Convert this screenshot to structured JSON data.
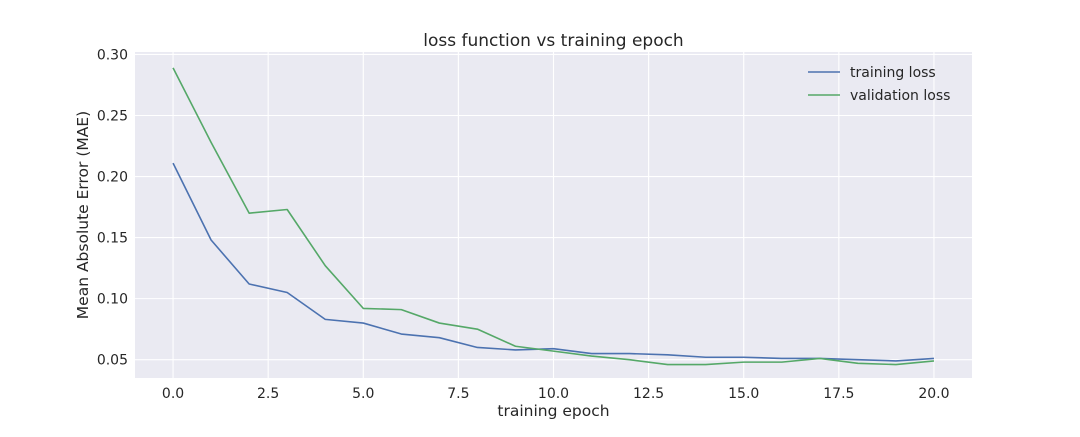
{
  "chart_data": {
    "type": "line",
    "title": "loss function vs training epoch",
    "xlabel": "training epoch",
    "ylabel": "Mean Absolute Error (MAE)",
    "xlim": [
      -1,
      21
    ],
    "ylim": [
      0.035,
      0.302
    ],
    "x_ticks": [
      0.0,
      2.5,
      5.0,
      7.5,
      10.0,
      12.5,
      15.0,
      17.5,
      20.0
    ],
    "x_tick_labels": [
      "0.0",
      "2.5",
      "5.0",
      "7.5",
      "10.0",
      "12.5",
      "15.0",
      "17.5",
      "20.0"
    ],
    "y_ticks": [
      0.05,
      0.1,
      0.15,
      0.2,
      0.25,
      0.3
    ],
    "y_tick_labels": [
      "0.05",
      "0.10",
      "0.15",
      "0.20",
      "0.25",
      "0.30"
    ],
    "grid": true,
    "legend_position": "top-right",
    "x": [
      0,
      1,
      2,
      3,
      4,
      5,
      6,
      7,
      8,
      9,
      10,
      11,
      12,
      13,
      14,
      15,
      16,
      17,
      18,
      19,
      20
    ],
    "series": [
      {
        "name": "training loss",
        "color": "#4c72b0",
        "values": [
          0.211,
          0.148,
          0.112,
          0.105,
          0.083,
          0.08,
          0.071,
          0.068,
          0.06,
          0.058,
          0.059,
          0.055,
          0.055,
          0.054,
          0.052,
          0.052,
          0.051,
          0.051,
          0.05,
          0.049,
          0.051
        ]
      },
      {
        "name": "validation loss",
        "color": "#55a868",
        "values": [
          0.289,
          0.228,
          0.17,
          0.173,
          0.127,
          0.092,
          0.091,
          0.08,
          0.075,
          0.061,
          0.057,
          0.053,
          0.05,
          0.046,
          0.046,
          0.048,
          0.048,
          0.051,
          0.047,
          0.046,
          0.049
        ]
      }
    ]
  }
}
